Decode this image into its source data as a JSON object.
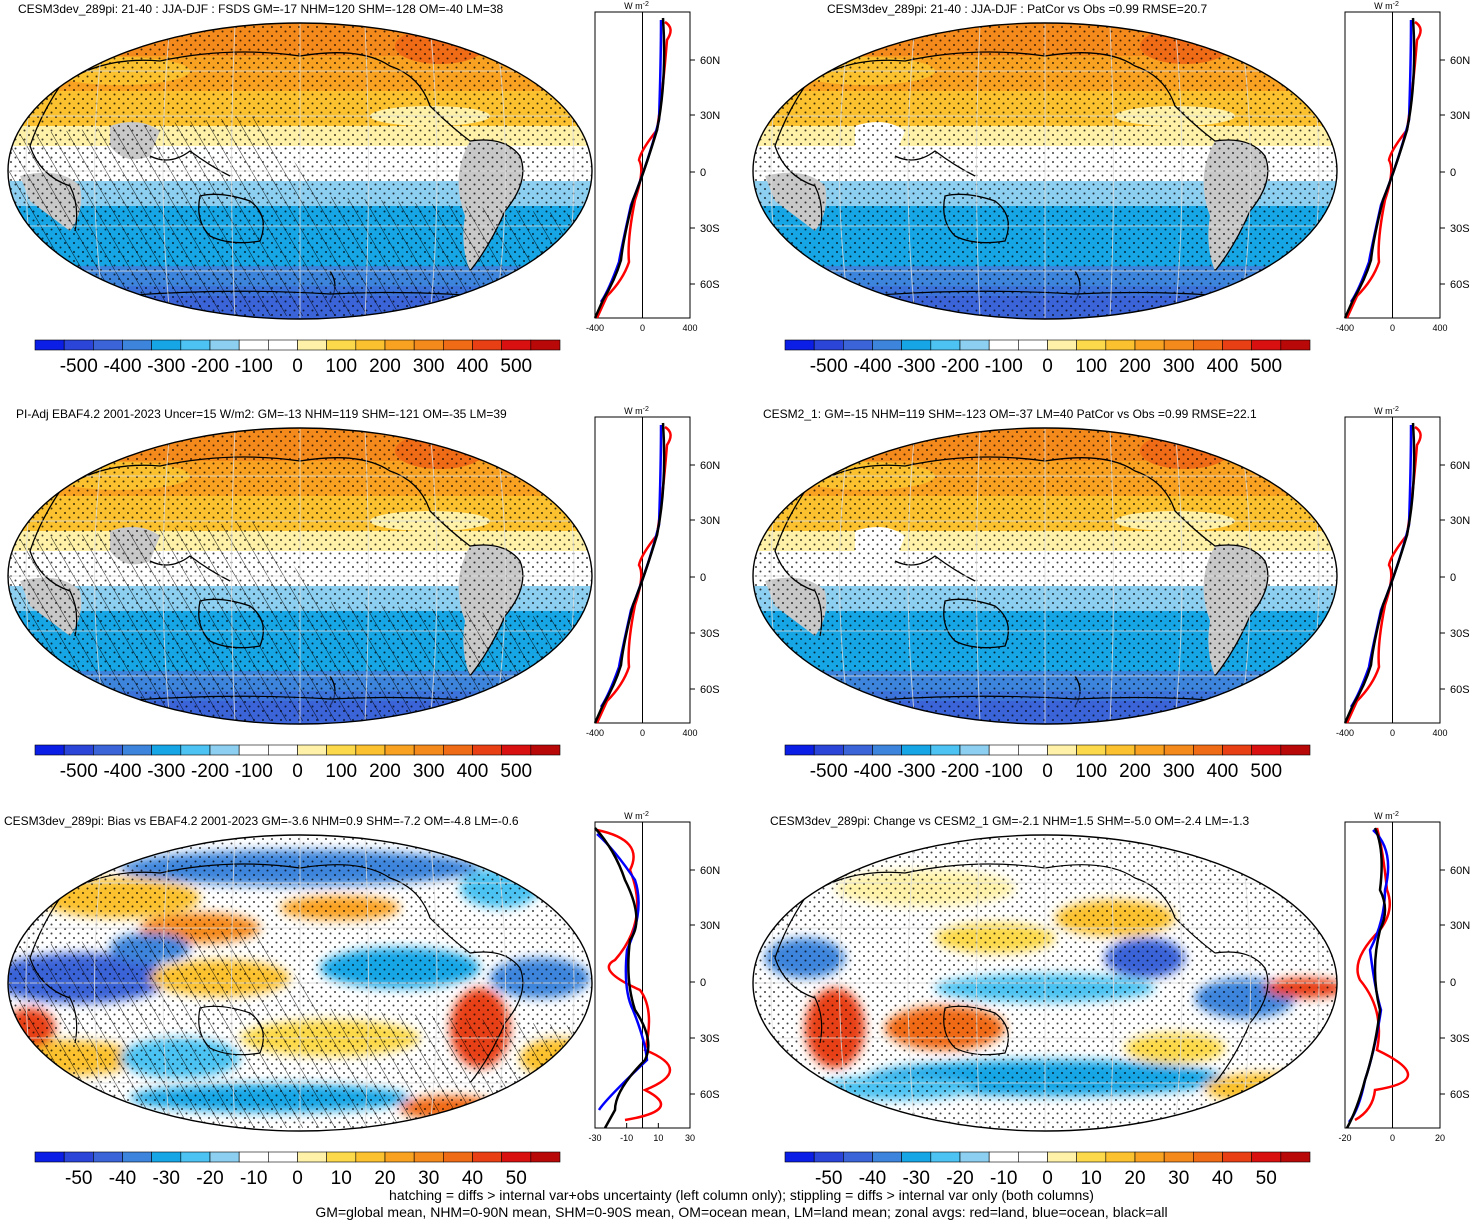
{
  "panels": [
    {
      "id": "p1",
      "title": "CESM3dev_289pi: 21-40 : JJA-DJF : FSDS GM=-17 NHM=120 SHM=-128 OM=-40 LM=38",
      "colorbar": [
        "-500",
        "-400",
        "-300",
        "-200",
        "-100",
        "0",
        "100",
        "200",
        "300",
        "400",
        "500"
      ],
      "zonal": {
        "xticks": [
          "-400",
          "0",
          "400"
        ],
        "units": "W m",
        "units_exp": "-2",
        "lat_labels": [
          "60N",
          "30N",
          "0",
          "30S",
          "60S"
        ]
      }
    },
    {
      "id": "p2",
      "title": "CESM3dev_289pi: 21-40 : JJA-DJF : PatCor vs Obs =0.99 RMSE=20.7",
      "colorbar": [
        "-500",
        "-400",
        "-300",
        "-200",
        "-100",
        "0",
        "100",
        "200",
        "300",
        "400",
        "500"
      ],
      "zonal": {
        "xticks": [
          "-400",
          "0",
          "400"
        ],
        "units": "W m",
        "units_exp": "-2",
        "lat_labels": [
          "60N",
          "30N",
          "0",
          "30S",
          "60S"
        ]
      }
    },
    {
      "id": "p3",
      "title": "PI-Adj EBAF4.2 2001-2023 Uncer=15 W/m2: GM=-13 NHM=119 SHM=-121 OM=-35 LM=39",
      "colorbar": [
        "-500",
        "-400",
        "-300",
        "-200",
        "-100",
        "0",
        "100",
        "200",
        "300",
        "400",
        "500"
      ],
      "zonal": {
        "xticks": [
          "-400",
          "0",
          "400"
        ],
        "units": "W m",
        "units_exp": "-2",
        "lat_labels": [
          "60N",
          "30N",
          "0",
          "30S",
          "60S"
        ]
      }
    },
    {
      "id": "p4",
      "title": "CESM2_1: GM=-15 NHM=119 SHM=-123 OM=-37 LM=40 PatCor vs Obs =0.99 RMSE=22.1",
      "colorbar": [
        "-500",
        "-400",
        "-300",
        "-200",
        "-100",
        "0",
        "100",
        "200",
        "300",
        "400",
        "500"
      ],
      "zonal": {
        "xticks": [
          "-400",
          "0",
          "400"
        ],
        "units": "W m",
        "units_exp": "-2",
        "lat_labels": [
          "60N",
          "30N",
          "0",
          "30S",
          "60S"
        ]
      }
    },
    {
      "id": "p5",
      "title": "CESM3dev_289pi: Bias vs EBAF4.2 2001-2023 GM=-3.6 NHM=0.9 SHM=-7.2 OM=-4.8 LM=-0.6",
      "colorbar": [
        "-50",
        "-40",
        "-30",
        "-20",
        "-10",
        "0",
        "10",
        "20",
        "30",
        "40",
        "50"
      ],
      "zonal": {
        "xticks": [
          "-30",
          "-10",
          "10",
          "30"
        ],
        "units": "W m",
        "units_exp": "-2",
        "lat_labels": [
          "60N",
          "30N",
          "0",
          "30S",
          "60S"
        ]
      }
    },
    {
      "id": "p6",
      "title": "CESM3dev_289pi: Change vs CESM2_1 GM=-2.1 NHM=1.5 SHM=-5.0 OM=-2.4 LM=-1.3",
      "colorbar": [
        "-50",
        "-40",
        "-30",
        "-20",
        "-10",
        "0",
        "10",
        "20",
        "30",
        "40",
        "50"
      ],
      "zonal": {
        "xticks": [
          "-20",
          "0",
          "20"
        ],
        "units": "W m",
        "units_exp": "-2",
        "lat_labels": [
          "60N",
          "30N",
          "0",
          "30S",
          "60S"
        ]
      }
    }
  ],
  "colors": {
    "palette": [
      "#0a1ee6",
      "#2a45d8",
      "#3a64d8",
      "#3d85dc",
      "#16a6e6",
      "#4cc3f2",
      "#8ccff0",
      "#ffffff",
      "#ffffff",
      "#fff2a8",
      "#fcd94a",
      "#fbc12e",
      "#f9a222",
      "#f58a1c",
      "#f06b16",
      "#e83f14",
      "#d81010",
      "#b80808"
    ],
    "land_mask": "#c8c8c8",
    "zonal_land": "#ff0000",
    "zonal_ocean": "#0000ff",
    "zonal_all": "#000000"
  },
  "footer": {
    "line1": "hatching = diffs > internal var+obs uncertainty (left column only); stippling = diffs > internal var only (both columns)",
    "line2": "GM=global mean, NHM=0-90N mean, SHM=0-90S mean, OM=ocean mean, LM=land mean; zonal avgs: red=land, blue=ocean, black=all"
  }
}
